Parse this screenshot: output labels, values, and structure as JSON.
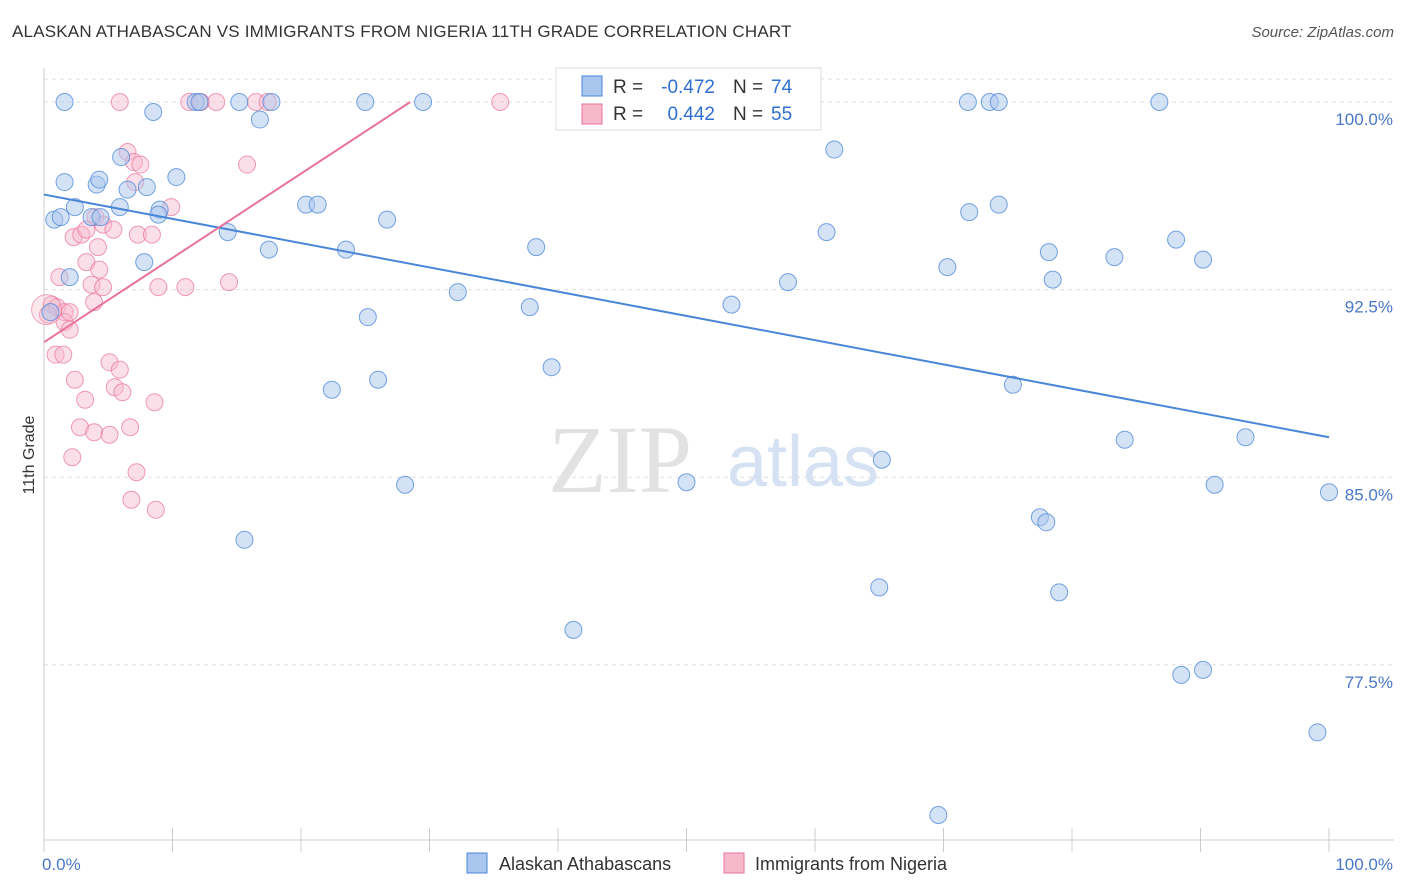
{
  "title": "ALASKAN ATHABASCAN VS IMMIGRANTS FROM NIGERIA 11TH GRADE CORRELATION CHART",
  "source": "Source: ZipAtlas.com",
  "watermark": {
    "zip": "ZIP",
    "atlas": "atlas"
  },
  "colors": {
    "blue": "#4a86d8",
    "blue_fill": "#a9c6ee",
    "pink": "#e8729a",
    "pink_fill": "#f6b9cc",
    "tick_text": "#4a78c8",
    "grid": "#dddddd"
  },
  "legend": {
    "series1": {
      "r_label": "R = ",
      "r_value": "-0.472",
      "n_label": "N = ",
      "n_value": "74"
    },
    "series2": {
      "r_label": "R = ",
      "r_value": "0.442",
      "n_label": "N = ",
      "n_value": "55"
    }
  },
  "chart_data": {
    "type": "scatter",
    "title": "ALASKAN ATHABASCAN VS IMMIGRANTS FROM NIGERIA 11TH GRADE CORRELATION CHART",
    "xlabel": "",
    "ylabel": "11th Grade",
    "xlim": [
      0,
      100
    ],
    "ylim": [
      70.5,
      101.2
    ],
    "x_tick_labels": [
      "0.0%",
      "100.0%"
    ],
    "y_ticks": [
      77.5,
      85.0,
      92.5,
      100.0
    ],
    "y_tick_labels": [
      "77.5%",
      "85.0%",
      "92.5%",
      "100.0%"
    ],
    "legend_position": "bottom-center",
    "series": [
      {
        "name": "Alaskan Athabascans",
        "color": "#4a86d8",
        "trend": {
          "x": [
            0,
            100
          ],
          "y": [
            96.3,
            86.6
          ]
        },
        "points": [
          [
            1.6,
            100.0
          ],
          [
            11.8,
            100.0
          ],
          [
            12.1,
            100.0
          ],
          [
            15.2,
            100.0
          ],
          [
            17.7,
            100.0
          ],
          [
            25.0,
            100.0
          ],
          [
            29.5,
            100.0
          ],
          [
            71.9,
            100.0
          ],
          [
            73.6,
            100.0
          ],
          [
            74.3,
            100.0
          ],
          [
            86.8,
            100.0
          ],
          [
            8.5,
            99.6
          ],
          [
            16.8,
            99.3
          ],
          [
            6.0,
            97.8
          ],
          [
            61.5,
            98.1
          ],
          [
            1.6,
            96.8
          ],
          [
            4.1,
            96.7
          ],
          [
            4.3,
            96.9
          ],
          [
            6.5,
            96.5
          ],
          [
            8.0,
            96.6
          ],
          [
            10.3,
            97.0
          ],
          [
            2.4,
            95.8
          ],
          [
            5.9,
            95.8
          ],
          [
            9.0,
            95.7
          ],
          [
            20.4,
            95.9
          ],
          [
            21.3,
            95.9
          ],
          [
            72.0,
            95.6
          ],
          [
            74.3,
            95.9
          ],
          [
            0.8,
            95.3
          ],
          [
            1.3,
            95.4
          ],
          [
            3.7,
            95.4
          ],
          [
            4.4,
            95.4
          ],
          [
            8.9,
            95.5
          ],
          [
            26.7,
            95.3
          ],
          [
            14.3,
            94.8
          ],
          [
            60.9,
            94.8
          ],
          [
            88.1,
            94.5
          ],
          [
            17.5,
            94.1
          ],
          [
            23.5,
            94.1
          ],
          [
            38.3,
            94.2
          ],
          [
            78.2,
            94.0
          ],
          [
            83.3,
            93.8
          ],
          [
            90.2,
            93.7
          ],
          [
            7.8,
            93.6
          ],
          [
            70.3,
            93.4
          ],
          [
            57.9,
            92.8
          ],
          [
            78.5,
            92.9
          ],
          [
            32.2,
            92.4
          ],
          [
            53.5,
            91.9
          ],
          [
            37.8,
            91.8
          ],
          [
            25.2,
            91.4
          ],
          [
            39.5,
            89.4
          ],
          [
            26.0,
            88.9
          ],
          [
            22.4,
            88.5
          ],
          [
            75.4,
            88.7
          ],
          [
            84.1,
            86.5
          ],
          [
            93.5,
            86.6
          ],
          [
            65.2,
            85.7
          ],
          [
            28.1,
            84.7
          ],
          [
            50.0,
            84.8
          ],
          [
            91.1,
            84.7
          ],
          [
            100.0,
            84.4
          ],
          [
            77.5,
            83.4
          ],
          [
            78.0,
            83.2
          ],
          [
            15.6,
            82.5
          ],
          [
            65.0,
            80.6
          ],
          [
            79.0,
            80.4
          ],
          [
            41.2,
            78.9
          ],
          [
            88.5,
            77.1
          ],
          [
            90.2,
            77.3
          ],
          [
            99.1,
            74.8
          ],
          [
            69.6,
            71.5
          ],
          [
            0.5,
            91.6
          ],
          [
            2.0,
            93.0
          ]
        ]
      },
      {
        "name": "Immigrants from Nigeria",
        "color": "#e8729a",
        "trend": {
          "x": [
            0,
            28.5
          ],
          "y": [
            90.4,
            100.0
          ]
        },
        "points": [
          [
            5.9,
            100.0
          ],
          [
            11.3,
            100.0
          ],
          [
            12.2,
            100.0
          ],
          [
            13.4,
            100.0
          ],
          [
            16.5,
            100.0
          ],
          [
            17.4,
            100.0
          ],
          [
            35.5,
            100.0
          ],
          [
            6.5,
            98.0
          ],
          [
            7.0,
            97.6
          ],
          [
            7.5,
            97.5
          ],
          [
            15.8,
            97.5
          ],
          [
            7.1,
            96.8
          ],
          [
            9.9,
            95.8
          ],
          [
            4.0,
            95.4
          ],
          [
            4.6,
            95.1
          ],
          [
            7.3,
            94.7
          ],
          [
            2.3,
            94.6
          ],
          [
            2.9,
            94.7
          ],
          [
            3.3,
            94.9
          ],
          [
            5.4,
            94.9
          ],
          [
            8.4,
            94.7
          ],
          [
            4.2,
            94.2
          ],
          [
            3.3,
            93.6
          ],
          [
            4.3,
            93.3
          ],
          [
            1.2,
            93.0
          ],
          [
            3.7,
            92.7
          ],
          [
            4.6,
            92.6
          ],
          [
            8.9,
            92.6
          ],
          [
            11.0,
            92.6
          ],
          [
            14.4,
            92.8
          ],
          [
            3.9,
            92.0
          ],
          [
            0.6,
            91.9
          ],
          [
            1.0,
            91.8
          ],
          [
            1.6,
            91.6
          ],
          [
            0.3,
            91.5
          ],
          [
            1.6,
            91.2
          ],
          [
            2.0,
            91.6
          ],
          [
            2.0,
            90.9
          ],
          [
            0.9,
            89.9
          ],
          [
            1.5,
            89.9
          ],
          [
            5.1,
            89.6
          ],
          [
            5.9,
            89.3
          ],
          [
            2.4,
            88.9
          ],
          [
            5.5,
            88.6
          ],
          [
            6.1,
            88.4
          ],
          [
            3.2,
            88.1
          ],
          [
            8.6,
            88.0
          ],
          [
            2.8,
            87.0
          ],
          [
            3.9,
            86.8
          ],
          [
            5.1,
            86.7
          ],
          [
            6.7,
            87.0
          ],
          [
            2.2,
            85.8
          ],
          [
            7.2,
            85.2
          ],
          [
            6.8,
            84.1
          ],
          [
            8.7,
            83.7
          ]
        ]
      }
    ]
  },
  "bottom_legend": {
    "series1": "Alaskan Athabascans",
    "series2": "Immigrants from Nigeria"
  }
}
